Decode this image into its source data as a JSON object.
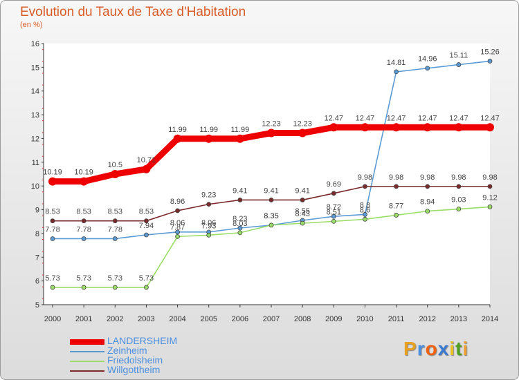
{
  "header": {
    "title": "Evolution du Taux de Taxe d'Habitation",
    "unit": "(en %)"
  },
  "brand": {
    "letters": [
      "P",
      "r",
      "o",
      "x",
      "i",
      "t",
      "i"
    ],
    "colors": [
      "#e8a020",
      "#4a8fe0",
      "#f06010",
      "#3a7ad0",
      "#e8c020",
      "#50a020",
      "#f0a030"
    ]
  },
  "chart_data": {
    "type": "line",
    "title": "Evolution du Taux de Taxe d'Habitation",
    "ylabel": "(en %)",
    "xlabel": "",
    "ylim": [
      5,
      16
    ],
    "grid": false,
    "legend_position": "bottom-left",
    "x": [
      "2000",
      "2001",
      "2002",
      "2003",
      "2004",
      "2005",
      "2006",
      "2007",
      "2008",
      "2009",
      "2010",
      "2011",
      "2012",
      "2013",
      "2014"
    ],
    "y_ticks": [
      "5",
      "6",
      "7",
      "8",
      "9",
      "10",
      "11",
      "12",
      "13",
      "14",
      "15",
      "16"
    ],
    "series": [
      {
        "name": "LANDERSHEIM",
        "color": "#ee0000",
        "values": [
          10.19,
          10.19,
          10.5,
          10.71,
          11.99,
          11.99,
          11.99,
          12.23,
          12.23,
          12.47,
          12.47,
          12.47,
          12.47,
          12.47,
          12.47
        ],
        "labels": [
          "10.19",
          "10.19",
          "10.5",
          "10.71",
          "11.99",
          "11.99",
          "11.99",
          "12.23",
          "12.23",
          "12.47",
          "12.47",
          "12.47",
          "12.47",
          "12.47",
          "12.47"
        ]
      },
      {
        "name": "Zeinheim",
        "color": "#5b9bd5",
        "values": [
          7.78,
          7.78,
          7.78,
          7.94,
          8.06,
          8.06,
          8.23,
          8.35,
          8.55,
          8.72,
          8.8,
          14.81,
          14.96,
          15.11,
          15.26
        ],
        "labels": [
          "7.78",
          "7.78",
          "7.78",
          "7.94",
          "8.06",
          "8.06",
          "8.23",
          "8.35",
          "8.55",
          "8.72",
          "8.8",
          "14.81",
          "14.96",
          "15.11",
          "15.26"
        ]
      },
      {
        "name": "Friedolsheim",
        "color": "#99dd66",
        "values": [
          5.73,
          5.73,
          5.73,
          5.73,
          7.87,
          7.93,
          8.03,
          8.35,
          8.43,
          8.51,
          8.6,
          8.77,
          8.94,
          9.03,
          9.12
        ],
        "labels": [
          "5.73",
          "5.73",
          "5.73",
          "5.73",
          "7.87",
          "7.93",
          "8.03",
          "8.35",
          "8.43",
          "8.51",
          "8.6",
          "8.77",
          "8.94",
          "9.03",
          "9.12"
        ]
      },
      {
        "name": "Willgottheim",
        "color": "#7a2a2a",
        "values": [
          8.53,
          8.53,
          8.53,
          8.53,
          8.96,
          9.23,
          9.41,
          9.41,
          9.41,
          9.69,
          9.98,
          9.98,
          9.98,
          9.98,
          9.98
        ],
        "labels": [
          "8.53",
          "8.53",
          "8.53",
          "8.53",
          "8.96",
          "9.23",
          "9.41",
          "9.41",
          "9.41",
          "9.69",
          "9.98",
          "9.98",
          "9.98",
          "9.98",
          "9.98"
        ]
      }
    ]
  }
}
